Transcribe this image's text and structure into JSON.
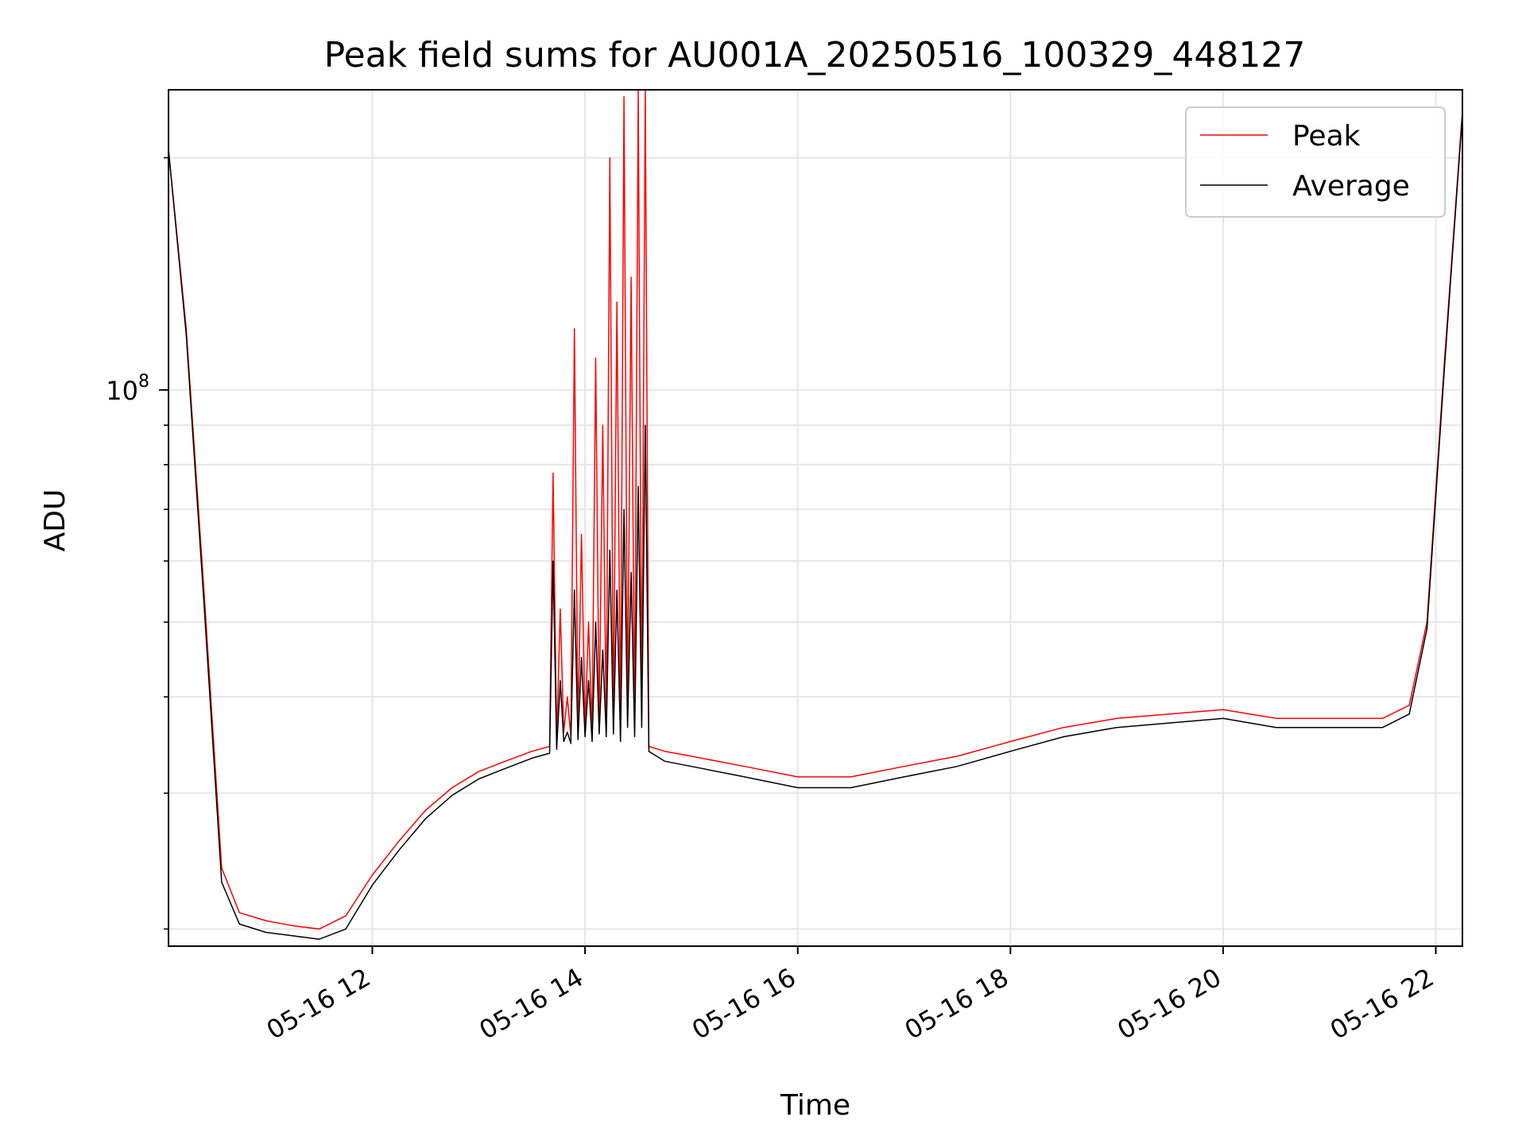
{
  "chart_data": {
    "type": "line",
    "title": "Peak field sums for AU001A_20250516_100329_448127",
    "xlabel": "Time",
    "ylabel": "ADU",
    "x_axis": {
      "scale": "time",
      "range": [
        "05-16 10:05",
        "05-16 22:15"
      ],
      "ticks": [
        {
          "value": "05-16 12:00",
          "label": "05-16 12"
        },
        {
          "value": "05-16 14:00",
          "label": "05-16 14"
        },
        {
          "value": "05-16 16:00",
          "label": "05-16 16"
        },
        {
          "value": "05-16 18:00",
          "label": "05-16 18"
        },
        {
          "value": "05-16 20:00",
          "label": "05-16 20"
        },
        {
          "value": "05-16 22:00",
          "label": "05-16 22"
        }
      ],
      "tick_label_rotation": 30
    },
    "y_axis": {
      "scale": "log",
      "range": [
        19000000,
        245000000
      ],
      "major_ticks": [
        {
          "value": 100000000,
          "label_base": "10",
          "label_exp": "8"
        }
      ],
      "minor_ticks": [
        20000000,
        30000000,
        40000000,
        50000000,
        60000000,
        70000000,
        80000000,
        90000000,
        200000000
      ]
    },
    "grid": true,
    "legend": {
      "placement": "top-right",
      "entries": [
        {
          "name": "Peak",
          "color": "#ff0000"
        },
        {
          "name": "Average",
          "color": "#000000"
        }
      ]
    },
    "series": [
      {
        "name": "Peak",
        "color": "#ff0000",
        "x": [
          "05-16 10:05",
          "05-16 10:15",
          "05-16 10:25",
          "05-16 10:35",
          "05-16 10:45",
          "05-16 11:00",
          "05-16 11:15",
          "05-16 11:30",
          "05-16 11:45",
          "05-16 12:00",
          "05-16 12:15",
          "05-16 12:30",
          "05-16 12:45",
          "05-16 13:00",
          "05-16 13:15",
          "05-16 13:30",
          "05-16 13:40",
          "05-16 13:42",
          "05-16 13:44",
          "05-16 13:46",
          "05-16 13:48",
          "05-16 13:50",
          "05-16 13:52",
          "05-16 13:54",
          "05-16 13:56",
          "05-16 13:58",
          "05-16 14:00",
          "05-16 14:02",
          "05-16 14:04",
          "05-16 14:06",
          "05-16 14:08",
          "05-16 14:10",
          "05-16 14:12",
          "05-16 14:14",
          "05-16 14:16",
          "05-16 14:18",
          "05-16 14:20",
          "05-16 14:22",
          "05-16 14:24",
          "05-16 14:26",
          "05-16 14:28",
          "05-16 14:30",
          "05-16 14:32",
          "05-16 14:34",
          "05-16 14:36",
          "05-16 14:45",
          "05-16 15:00",
          "05-16 15:30",
          "05-16 16:00",
          "05-16 16:30",
          "05-16 17:00",
          "05-16 17:30",
          "05-16 18:00",
          "05-16 18:30",
          "05-16 19:00",
          "05-16 19:30",
          "05-16 20:00",
          "05-16 20:30",
          "05-16 21:00",
          "05-16 21:30",
          "05-16 21:45",
          "05-16 21:55",
          "05-16 22:05",
          "05-16 22:15"
        ],
        "y": [
          205000000,
          120000000,
          55000000,
          24000000,
          21000000,
          20500000,
          20200000,
          20000000,
          20800000,
          23500000,
          26000000,
          28500000,
          30500000,
          32000000,
          33000000,
          34000000,
          34500000,
          78000000,
          35000000,
          52000000,
          36000000,
          40000000,
          35500000,
          120000000,
          36000000,
          65000000,
          36500000,
          50000000,
          36000000,
          110000000,
          37000000,
          90000000,
          36500000,
          200000000,
          37000000,
          130000000,
          36000000,
          240000000,
          38000000,
          140000000,
          36500000,
          245000000,
          38000000,
          245000000,
          34500000,
          34000000,
          33500000,
          32500000,
          31500000,
          31500000,
          32500000,
          33500000,
          35000000,
          36500000,
          37500000,
          38000000,
          38500000,
          37500000,
          37500000,
          37500000,
          39000000,
          50000000,
          110000000,
          230000000
        ]
      },
      {
        "name": "Average",
        "color": "#000000",
        "x": [
          "05-16 10:05",
          "05-16 10:15",
          "05-16 10:25",
          "05-16 10:35",
          "05-16 10:45",
          "05-16 11:00",
          "05-16 11:15",
          "05-16 11:30",
          "05-16 11:45",
          "05-16 12:00",
          "05-16 12:15",
          "05-16 12:30",
          "05-16 12:45",
          "05-16 13:00",
          "05-16 13:15",
          "05-16 13:30",
          "05-16 13:40",
          "05-16 13:42",
          "05-16 13:44",
          "05-16 13:46",
          "05-16 13:48",
          "05-16 13:50",
          "05-16 13:52",
          "05-16 13:54",
          "05-16 13:56",
          "05-16 13:58",
          "05-16 14:00",
          "05-16 14:02",
          "05-16 14:04",
          "05-16 14:06",
          "05-16 14:08",
          "05-16 14:10",
          "05-16 14:12",
          "05-16 14:14",
          "05-16 14:16",
          "05-16 14:18",
          "05-16 14:20",
          "05-16 14:22",
          "05-16 14:24",
          "05-16 14:26",
          "05-16 14:28",
          "05-16 14:30",
          "05-16 14:32",
          "05-16 14:34",
          "05-16 14:36",
          "05-16 14:45",
          "05-16 15:00",
          "05-16 15:30",
          "05-16 16:00",
          "05-16 16:30",
          "05-16 17:00",
          "05-16 17:30",
          "05-16 18:00",
          "05-16 18:30",
          "05-16 19:00",
          "05-16 19:30",
          "05-16 20:00",
          "05-16 20:30",
          "05-16 21:00",
          "05-16 21:30",
          "05-16 21:45",
          "05-16 21:55",
          "05-16 22:05",
          "05-16 22:15"
        ],
        "y": [
          205000000,
          118000000,
          53000000,
          23000000,
          20300000,
          19800000,
          19600000,
          19400000,
          20000000,
          22800000,
          25300000,
          27800000,
          29800000,
          31300000,
          32300000,
          33300000,
          33800000,
          60000000,
          34200000,
          42000000,
          35000000,
          36000000,
          34800000,
          55000000,
          35200000,
          45000000,
          35500000,
          42000000,
          35000000,
          50000000,
          35800000,
          46000000,
          35500000,
          62000000,
          35800000,
          55000000,
          35000000,
          70000000,
          36500000,
          58000000,
          35500000,
          75000000,
          36500000,
          90000000,
          34000000,
          33000000,
          32500000,
          31500000,
          30500000,
          30500000,
          31500000,
          32500000,
          34000000,
          35500000,
          36500000,
          37000000,
          37500000,
          36500000,
          36500000,
          36500000,
          38000000,
          49000000,
          108000000,
          228000000
        ]
      }
    ]
  }
}
